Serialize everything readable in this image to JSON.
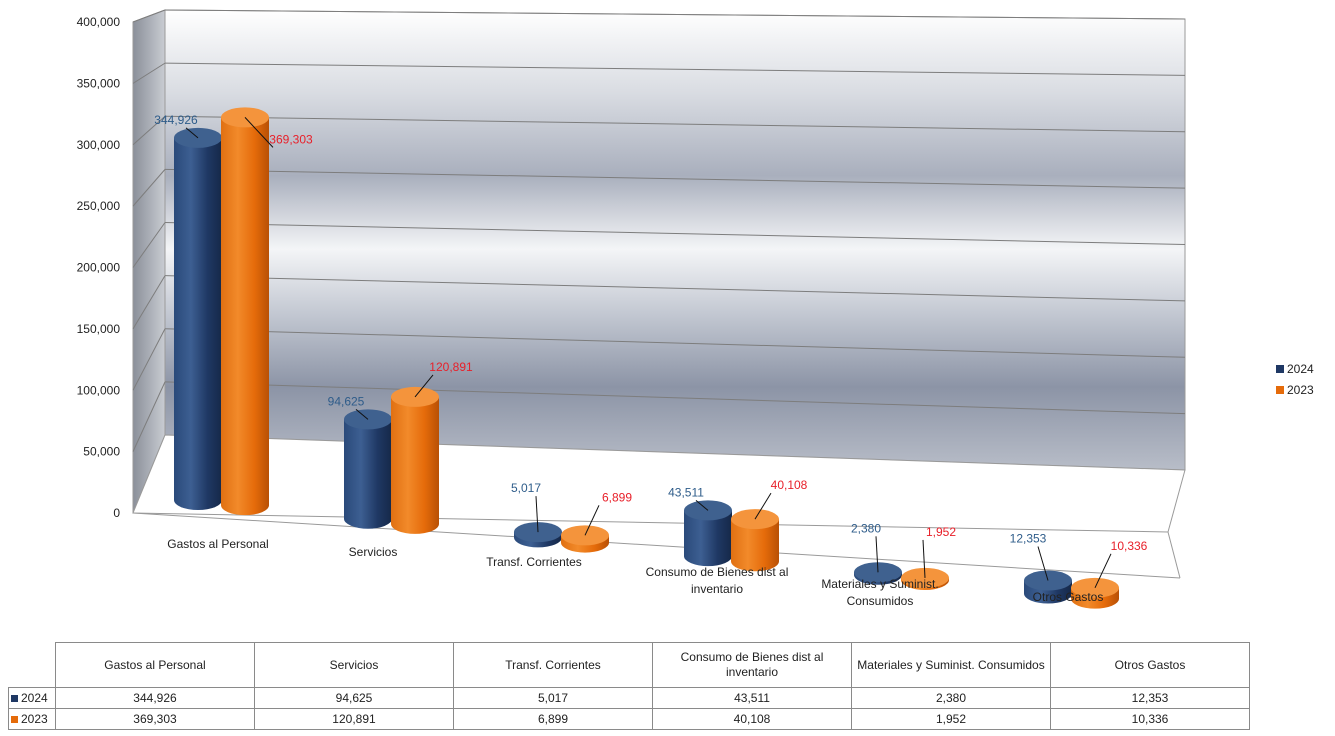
{
  "chart_data": {
    "type": "bar",
    "categories": [
      "Gastos al Personal",
      "Servicios",
      "Transf. Corrientes",
      "Consumo de Bienes dist al inventario",
      "Materiales y Suminist. Consumidos",
      "Otros Gastos"
    ],
    "series": [
      {
        "name": "2024",
        "values": [
          344926,
          94625,
          5017,
          43511,
          2380,
          12353
        ],
        "color": "#1f3864",
        "label_color": "#2e5c8a"
      },
      {
        "name": "2023",
        "values": [
          369303,
          120891,
          6899,
          40108,
          1952,
          10336
        ],
        "color": "#e56b0a",
        "label_color": "#e8202a"
      }
    ],
    "data_labels": [
      [
        "344,926",
        "94,625",
        "5,017",
        "43,511",
        "2,380",
        "12,353"
      ],
      [
        "369,303",
        "120,891",
        "6,899",
        "40,108",
        "1,952",
        "10,336"
      ]
    ],
    "y_ticks": [
      "0",
      "50,000",
      "100,000",
      "150,000",
      "200,000",
      "250,000",
      "300,000",
      "350,000",
      "400,000"
    ],
    "ylim": [
      0,
      400000
    ],
    "grid": true,
    "legend_position": "right",
    "style": "3d-cylinder"
  },
  "table": {
    "headers": [
      "Gastos al Personal",
      "Servicios",
      "Transf. Corrientes",
      "Consumo de Bienes dist al inventario",
      "Materiales y Suminist. Consumidos",
      "Otros Gastos"
    ],
    "rows": [
      {
        "series": "2024",
        "color": "#1f3864",
        "cells": [
          "344,926",
          "94,625",
          "5,017",
          "43,511",
          "2,380",
          "12,353"
        ]
      },
      {
        "series": "2023",
        "color": "#e56b0a",
        "cells": [
          "369,303",
          "120,891",
          "6,899",
          "40,108",
          "1,952",
          "10,336"
        ]
      }
    ]
  }
}
